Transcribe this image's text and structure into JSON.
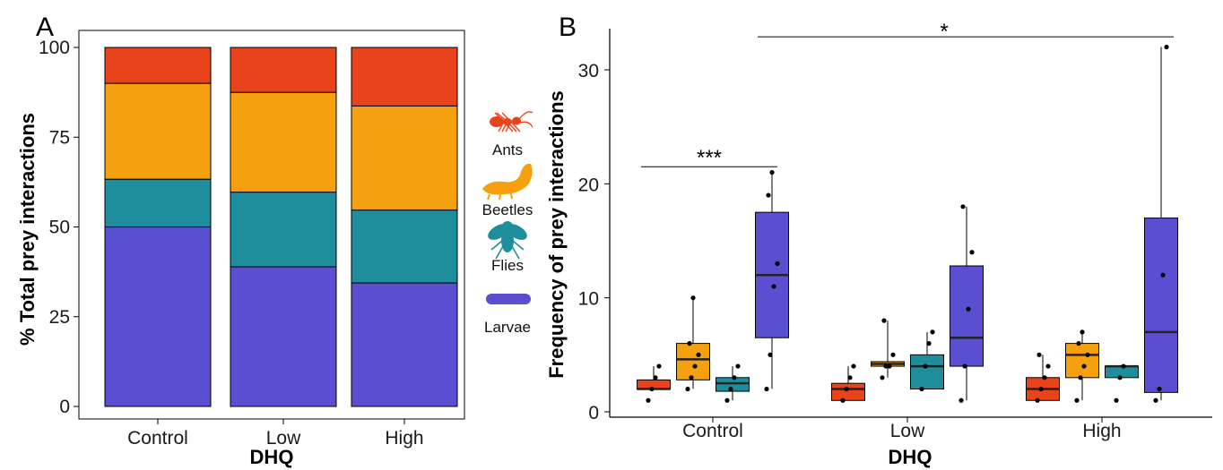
{
  "colors": {
    "Ants": "#e8431a",
    "Beetles": "#f5a10f",
    "Flies": "#1e8e9c",
    "Larvae": "#5b4fd1"
  },
  "legend": [
    {
      "label": "Ants",
      "icon": "ant-icon"
    },
    {
      "label": "Beetles",
      "icon": "beetle-larva-icon"
    },
    {
      "label": "Flies",
      "icon": "fly-icon"
    },
    {
      "label": "Larvae",
      "icon": "larva-icon"
    }
  ],
  "chart_data": [
    {
      "panel": "A",
      "type": "bar",
      "stacked": true,
      "categories": [
        "Control",
        "Low",
        "High"
      ],
      "series": [
        {
          "name": "Larvae",
          "values": [
            50,
            38.9,
            34.4
          ]
        },
        {
          "name": "Flies",
          "values": [
            13.3,
            20.8,
            20.3
          ]
        },
        {
          "name": "Beetles",
          "values": [
            26.7,
            27.8,
            29.0
          ]
        },
        {
          "name": "Ants",
          "values": [
            10.0,
            12.5,
            16.3
          ]
        }
      ],
      "xlabel": "DHQ",
      "ylabel": "% Total prey interactions",
      "ylim": [
        0,
        100
      ],
      "yticks": [
        0,
        25,
        50,
        75,
        100
      ],
      "grid": false
    },
    {
      "panel": "B",
      "type": "box",
      "categories": [
        "Control",
        "Low",
        "High"
      ],
      "series_order": [
        "Ants",
        "Beetles",
        "Flies",
        "Larvae"
      ],
      "boxes": [
        {
          "group": "Control",
          "series": "Ants",
          "min": 2,
          "q1": 2,
          "median": 2,
          "q3": 2.8,
          "max": 4,
          "points": [
            1,
            2,
            3,
            4
          ]
        },
        {
          "group": "Control",
          "series": "Beetles",
          "min": 2,
          "q1": 2.8,
          "median": 4.6,
          "q3": 6,
          "max": 10,
          "points": [
            2,
            3,
            4,
            5,
            6,
            10
          ]
        },
        {
          "group": "Control",
          "series": "Flies",
          "min": 1,
          "q1": 1.8,
          "median": 2.5,
          "q3": 3,
          "max": 4,
          "points": [
            1,
            2,
            3,
            4
          ]
        },
        {
          "group": "Control",
          "series": "Larvae",
          "min": 2,
          "q1": 6.5,
          "median": 12,
          "q3": 17.5,
          "max": 21,
          "points": [
            2,
            5,
            11,
            13,
            19,
            21
          ]
        },
        {
          "group": "Low",
          "series": "Ants",
          "min": 1,
          "q1": 1,
          "median": 2,
          "q3": 2.5,
          "max": 4,
          "points": [
            1,
            2,
            3,
            4
          ]
        },
        {
          "group": "Low",
          "series": "Beetles",
          "min": 3,
          "q1": 4,
          "median": 4.2,
          "q3": 4.4,
          "max": 8,
          "points": [
            3,
            4,
            4,
            5,
            8
          ]
        },
        {
          "group": "Low",
          "series": "Flies",
          "min": 2,
          "q1": 2,
          "median": 4,
          "q3": 5,
          "max": 7,
          "points": [
            2,
            4,
            6,
            7
          ]
        },
        {
          "group": "Low",
          "series": "Larvae",
          "min": 1,
          "q1": 4,
          "median": 6.5,
          "q3": 12.8,
          "max": 18,
          "points": [
            1,
            4,
            9,
            14,
            18
          ]
        },
        {
          "group": "High",
          "series": "Ants",
          "min": 1,
          "q1": 1,
          "median": 2,
          "q3": 3,
          "max": 5,
          "points": [
            1,
            2,
            3,
            4,
            5
          ]
        },
        {
          "group": "High",
          "series": "Beetles",
          "min": 1,
          "q1": 3,
          "median": 5,
          "q3": 6,
          "max": 7,
          "points": [
            1,
            3,
            4,
            5,
            6,
            7
          ]
        },
        {
          "group": "High",
          "series": "Flies",
          "min": 3,
          "q1": 3,
          "median": 4,
          "q3": 4,
          "max": 4,
          "points": [
            1,
            3,
            4
          ]
        },
        {
          "group": "High",
          "series": "Larvae",
          "min": 1,
          "q1": 1.7,
          "median": 7,
          "q3": 17,
          "max": 32,
          "points": [
            1,
            2,
            12,
            32
          ]
        }
      ],
      "significance": [
        {
          "label": "***",
          "from_value": 21.5,
          "group": "Control"
        },
        {
          "label": "*",
          "from_value": 32.9,
          "group": "Control-High"
        }
      ],
      "xlabel": "DHQ",
      "ylabel": "Frequency of prey interactions",
      "ylim": [
        0,
        33
      ],
      "yticks": [
        0,
        10,
        20,
        30
      ],
      "grid": false
    }
  ],
  "labels": {
    "panel_a": "A",
    "panel_b": "B"
  }
}
